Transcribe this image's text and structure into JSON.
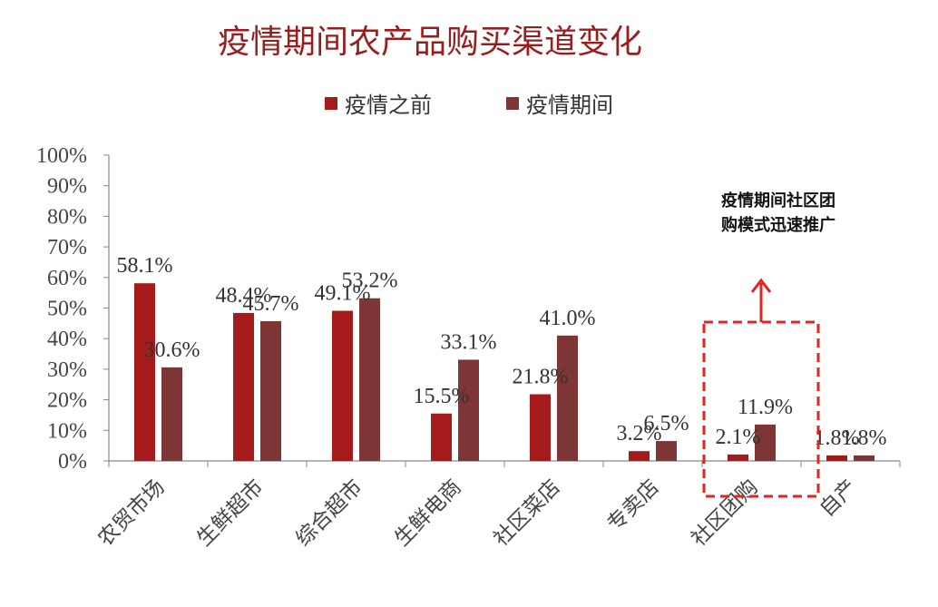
{
  "chart_data": {
    "type": "bar",
    "title": "疫情期间农产品购买渠道变化",
    "categories": [
      "农贸市场",
      "生鲜超市",
      "综合超市",
      "生鲜电商",
      "社区菜店",
      "专卖店",
      "社区团购",
      "自产"
    ],
    "series": [
      {
        "name": "疫情之前",
        "color": "#a51a1a",
        "values": [
          58.1,
          48.4,
          49.1,
          15.5,
          21.8,
          3.2,
          2.1,
          1.8
        ],
        "labels": [
          "58.1%",
          "48.4%",
          "49.1%",
          "15.5%",
          "21.8%",
          "3.2%",
          "2.1%",
          "1.8%"
        ]
      },
      {
        "name": "疫情期间",
        "color": "#7d3535",
        "values": [
          30.6,
          45.7,
          53.2,
          33.1,
          41.0,
          6.5,
          11.9,
          1.8
        ],
        "labels": [
          "30.6%",
          "45.7%",
          "53.2%",
          "33.1%",
          "41.0%",
          "6.5%",
          "11.9%",
          "1.8%"
        ]
      }
    ],
    "ylim": [
      0,
      100
    ],
    "yticks": [
      "0%",
      "10%",
      "20%",
      "30%",
      "40%",
      "50%",
      "60%",
      "70%",
      "80%",
      "90%",
      "100%"
    ],
    "legend_position": "top",
    "grid": false,
    "annotation": {
      "lines": [
        "疫情期间社区团",
        "购模式迅速推广"
      ],
      "target_category": "社区团购",
      "highlight_color": "#e52222"
    }
  }
}
